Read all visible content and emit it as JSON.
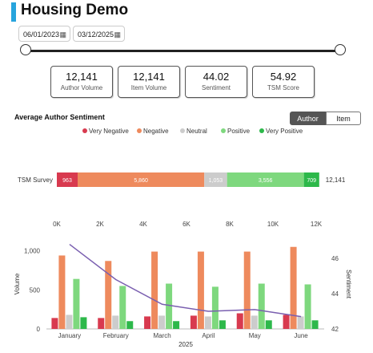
{
  "header": {
    "title": "Housing Demo"
  },
  "filters": {
    "start_date": "06/01/2023",
    "end_date": "03/12/2025",
    "calendar_icon": "calendar-icon"
  },
  "kpis": [
    {
      "value": "12,141",
      "label": "Author Volume"
    },
    {
      "value": "12,141",
      "label": "Item Volume"
    },
    {
      "value": "44.02",
      "label": "Sentiment"
    },
    {
      "value": "54.92",
      "label": "TSM Score"
    }
  ],
  "sentiment_section": {
    "title": "Average Author Sentiment",
    "toggle": [
      "Author",
      "Item"
    ],
    "active_toggle": "Author"
  },
  "colors": {
    "accent": "#27a4dd",
    "very_negative": "#d83a4f",
    "negative": "#ee8a5d",
    "neutral": "#cccccc",
    "positive": "#7ed87e",
    "very_positive": "#2db84a",
    "line": "#7a5fb0"
  },
  "chart_data": [
    {
      "type": "bar",
      "orientation": "horizontal",
      "stacked": true,
      "categories": [
        "TSM Survey"
      ],
      "series": [
        {
          "name": "Very Negative",
          "values": [
            963
          ]
        },
        {
          "name": "Negative",
          "values": [
            5860
          ]
        },
        {
          "name": "Neutral",
          "values": [
            1053
          ]
        },
        {
          "name": "Positive",
          "values": [
            3556
          ]
        },
        {
          "name": "Very Positive",
          "values": [
            709
          ]
        }
      ],
      "data_labels": [
        "963",
        "5,860",
        "1,053",
        "3,556",
        "709"
      ],
      "total_label": "12,141",
      "x_ticks": [
        "0K",
        "2K",
        "4K",
        "6K",
        "8K",
        "10K",
        "12K"
      ],
      "xlim": [
        0,
        12000
      ],
      "legend": "top",
      "grid": false
    },
    {
      "type": "bar",
      "categories": [
        "January",
        "February",
        "March",
        "April",
        "May",
        "June"
      ],
      "series": [
        {
          "name": "Very Negative",
          "values": [
            140,
            140,
            160,
            170,
            200,
            180
          ]
        },
        {
          "name": "Negative",
          "values": [
            940,
            870,
            990,
            990,
            990,
            1050
          ]
        },
        {
          "name": "Neutral",
          "values": [
            180,
            170,
            170,
            160,
            170,
            160
          ]
        },
        {
          "name": "Positive",
          "values": [
            640,
            550,
            580,
            540,
            580,
            570
          ]
        },
        {
          "name": "Very Positive",
          "values": [
            150,
            100,
            100,
            110,
            110,
            110
          ]
        }
      ],
      "line_series": {
        "name": "Sentiment",
        "axis": "right",
        "values": [
          46.8,
          44.8,
          43.4,
          43.0,
          43.1,
          42.7
        ]
      },
      "xlabel": "2025",
      "ylabel": "Volume",
      "y2label": "Sentiment",
      "ylim": [
        0,
        1150
      ],
      "y_ticks": [
        "0",
        "500",
        "1,000"
      ],
      "y2lim": [
        42,
        47.1
      ],
      "y2_ticks": [
        "42",
        "44",
        "46"
      ],
      "legend": "none",
      "grid": false
    }
  ]
}
